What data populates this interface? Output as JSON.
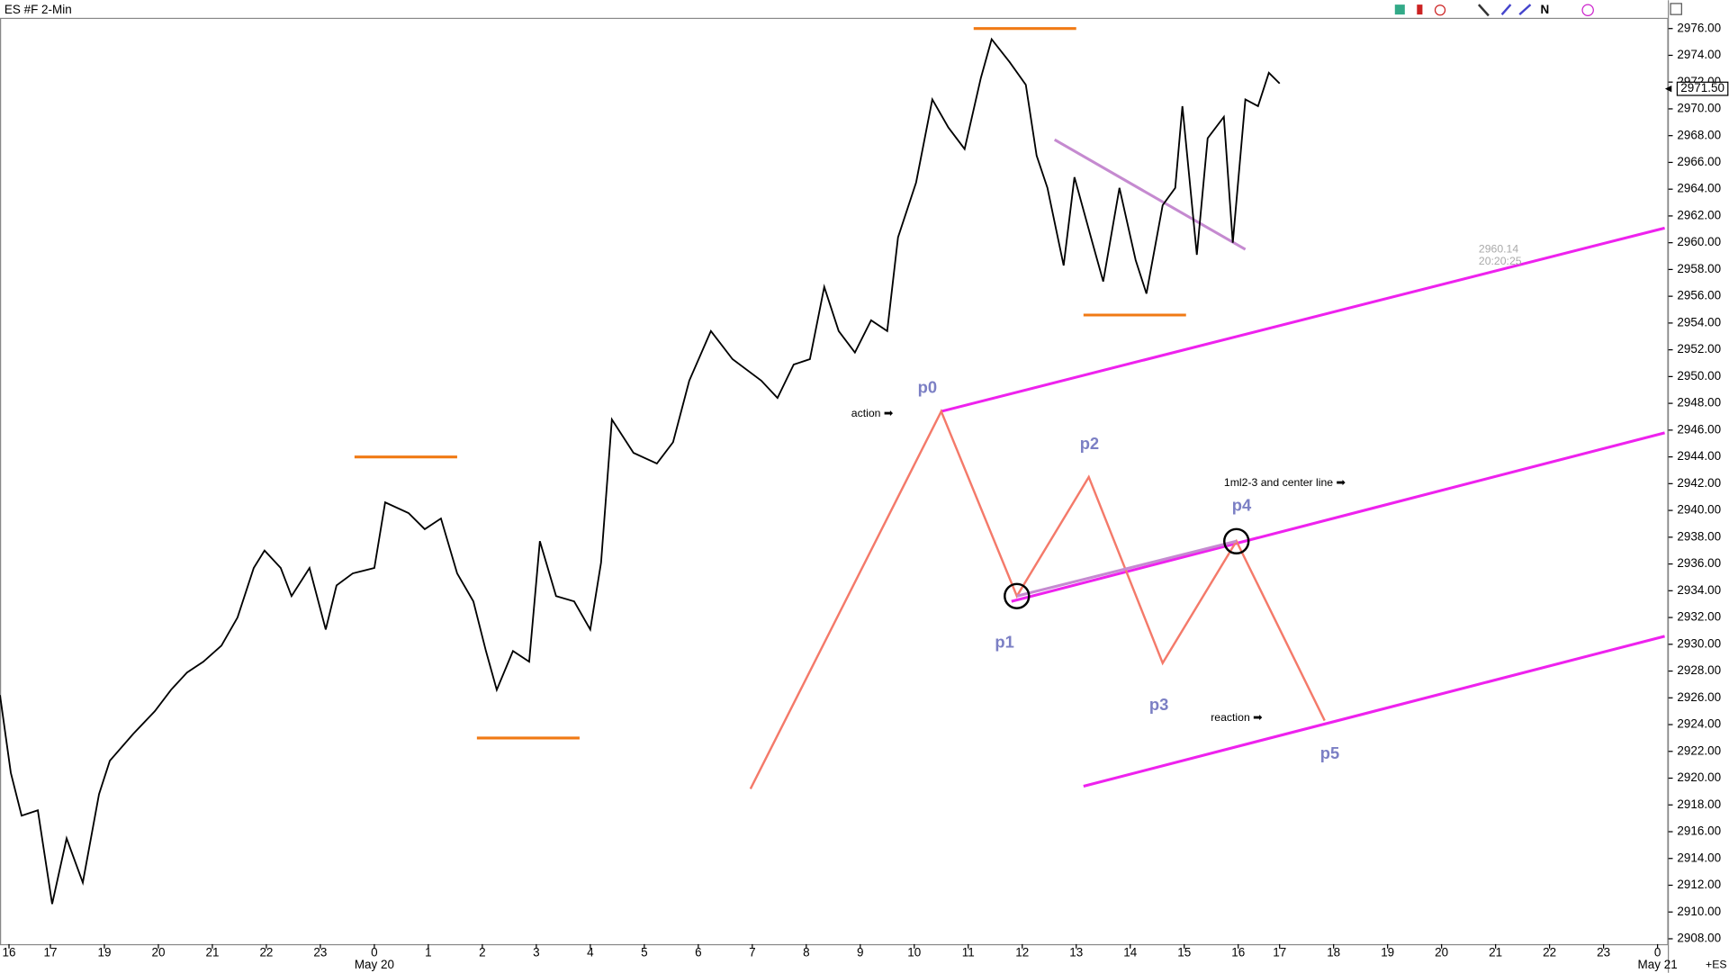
{
  "chart_data": {
    "type": "line",
    "title": "ES #F 2-Min",
    "x": [
      0,
      6,
      12,
      21,
      29,
      37,
      46,
      55,
      61,
      74,
      86,
      95,
      104,
      113,
      123,
      132,
      141,
      147,
      156,
      162,
      172,
      181,
      187,
      196,
      208,
      214,
      227,
      236,
      245,
      254,
      263,
      270,
      276,
      285,
      294,
      300,
      309,
      319,
      328,
      334,
      340,
      352,
      365,
      374,
      383,
      395,
      407,
      423,
      432,
      441,
      450,
      458,
      466,
      475,
      484,
      493,
      499,
      509,
      518,
      527,
      536,
      545,
      551,
      561,
      570,
      576,
      582,
      591,
      597,
      607,
      613,
      622,
      631,
      637,
      646,
      653,
      657,
      665,
      671,
      680,
      685,
      692,
      699,
      705,
      711
    ],
    "values": [
      2926.2,
      2920.4,
      2917.2,
      2917.6,
      2910.6,
      2915.5,
      2912.2,
      2918.8,
      2921.3,
      2923.3,
      2925,
      2926.6,
      2927.9,
      2928.7,
      2929.9,
      2932,
      2935.7,
      2937,
      2935.7,
      2933.6,
      2935.7,
      2931.1,
      2934.4,
      2935.3,
      2935.7,
      2940.6,
      2939.8,
      2938.6,
      2939.4,
      2935.3,
      2933.2,
      2929.5,
      2926.6,
      2929.5,
      2928.7,
      2937.7,
      2933.6,
      2933.2,
      2931.1,
      2936.1,
      2946.8,
      2944.3,
      2943.5,
      2945.1,
      2949.7,
      2953.4,
      2951.3,
      2949.7,
      2948.4,
      2950.9,
      2951.3,
      2956.7,
      2953.4,
      2951.8,
      2954.2,
      2953.4,
      2960.4,
      2964.5,
      2970.7,
      2968.6,
      2967,
      2972.3,
      2975.2,
      2973.5,
      2971.8,
      2966.5,
      2964.1,
      2958.3,
      2964.9,
      2960,
      2957.1,
      2964.1,
      2958.7,
      2956.2,
      2962.8,
      2964.1,
      2970.2,
      2959.1,
      2967.8,
      2969.4,
      2960,
      2970.7,
      2970.2,
      2972.7,
      2971.9
    ],
    "color": "#000000",
    "xlim": [
      0,
      927
    ],
    "ylim": [
      2907.6,
      2976.8
    ],
    "xticks": [
      {
        "value": 5,
        "label": "16"
      },
      {
        "value": 28,
        "label": "17"
      },
      {
        "value": 58,
        "label": "19"
      },
      {
        "value": 88,
        "label": "20"
      },
      {
        "value": 118,
        "label": "21"
      },
      {
        "value": 148,
        "label": "22"
      },
      {
        "value": 178,
        "label": "23"
      },
      {
        "value": 208,
        "label": "0"
      },
      {
        "value": 238,
        "label": "1"
      },
      {
        "value": 268,
        "label": "2"
      },
      {
        "value": 298,
        "label": "3"
      },
      {
        "value": 328,
        "label": "4"
      },
      {
        "value": 358,
        "label": "5"
      },
      {
        "value": 388,
        "label": "6"
      },
      {
        "value": 418,
        "label": "7"
      },
      {
        "value": 448,
        "label": "8"
      },
      {
        "value": 478,
        "label": "9"
      },
      {
        "value": 508,
        "label": "10"
      },
      {
        "value": 538,
        "label": "11"
      },
      {
        "value": 568,
        "label": "12"
      },
      {
        "value": 598,
        "label": "13"
      },
      {
        "value": 628,
        "label": "14"
      },
      {
        "value": 658,
        "label": "15"
      },
      {
        "value": 688,
        "label": "16"
      },
      {
        "value": 711,
        "label": "17"
      },
      {
        "value": 741,
        "label": "18"
      },
      {
        "value": 771,
        "label": "19"
      },
      {
        "value": 801,
        "label": "20"
      },
      {
        "value": 831,
        "label": "21"
      },
      {
        "value": 861,
        "label": "22"
      },
      {
        "value": 891,
        "label": "23"
      },
      {
        "value": 921,
        "label": "0"
      }
    ],
    "date_labels": [
      {
        "value": 208,
        "label": "May 20"
      },
      {
        "value": 921,
        "label": "May 21"
      }
    ],
    "yticks": [
      {
        "value": 2908,
        "label": "2908.00"
      },
      {
        "value": 2910,
        "label": "2910.00"
      },
      {
        "value": 2912,
        "label": "2912.00"
      },
      {
        "value": 2914,
        "label": "2914.00"
      },
      {
        "value": 2916,
        "label": "2916.00"
      },
      {
        "value": 2918,
        "label": "2918.00"
      },
      {
        "value": 2920,
        "label": "2920.00"
      },
      {
        "value": 2922,
        "label": "2922.00"
      },
      {
        "value": 2924,
        "label": "2924.00"
      },
      {
        "value": 2926,
        "label": "2926.00"
      },
      {
        "value": 2928,
        "label": "2928.00"
      },
      {
        "value": 2930,
        "label": "2930.00"
      },
      {
        "value": 2932,
        "label": "2932.00"
      },
      {
        "value": 2934,
        "label": "2934.00"
      },
      {
        "value": 2936,
        "label": "2936.00"
      },
      {
        "value": 2938,
        "label": "2938.00"
      },
      {
        "value": 2940,
        "label": "2940.00"
      },
      {
        "value": 2942,
        "label": "2942.00"
      },
      {
        "value": 2944,
        "label": "2944.00"
      },
      {
        "value": 2946,
        "label": "2946.00"
      },
      {
        "value": 2948,
        "label": "2948.00"
      },
      {
        "value": 2950,
        "label": "2950.00"
      },
      {
        "value": 2952,
        "label": "2952.00"
      },
      {
        "value": 2954,
        "label": "2954.00"
      },
      {
        "value": 2956,
        "label": "2956.00"
      },
      {
        "value": 2958,
        "label": "2958.00"
      },
      {
        "value": 2960,
        "label": "2960.00"
      },
      {
        "value": 2962,
        "label": "2962.00"
      },
      {
        "value": 2964,
        "label": "2964.00"
      },
      {
        "value": 2966,
        "label": "2966.00"
      },
      {
        "value": 2968,
        "label": "2968.00"
      },
      {
        "value": 2970,
        "label": "2970.00"
      },
      {
        "value": 2972,
        "label": "2972.00"
      },
      {
        "value": 2974,
        "label": "2974.00"
      },
      {
        "value": 2976,
        "label": "2976.00"
      }
    ],
    "current_price": {
      "value": 2971.5,
      "label": "2971.50"
    },
    "levels": {
      "color": "#f07a14",
      "lines": [
        {
          "x": [
            197,
            254
          ],
          "y": 2944.0
        },
        {
          "x": [
            265,
            322
          ],
          "y": 2923.0
        },
        {
          "x": [
            541,
            598
          ],
          "y": 2976.0
        },
        {
          "x": [
            602,
            659
          ],
          "y": 2954.6
        }
      ]
    },
    "channel": {
      "color": "#ee22ee",
      "lines": [
        {
          "x": [
            523,
            925
          ],
          "y": [
            2947.4,
            2961.1
          ]
        },
        {
          "x": [
            562,
            925
          ],
          "y": [
            2933.2,
            2945.8
          ]
        },
        {
          "x": [
            602,
            925
          ],
          "y": [
            2919.4,
            2930.6
          ]
        }
      ]
    },
    "zigzag": {
      "color": "#f47a6a",
      "x": [
        417,
        523,
        565,
        605,
        646,
        687,
        736
      ],
      "y": [
        2919.2,
        2947.4,
        2933.6,
        2942.5,
        2928.6,
        2937.7,
        2924.3
      ]
    },
    "trendlines": {
      "color": "#c58ad0",
      "lines": [
        {
          "x": [
            586,
            692
          ],
          "y": [
            2967.7,
            2959.5
          ]
        },
        {
          "x": [
            565,
            687
          ],
          "y": [
            2933.6,
            2937.7
          ]
        }
      ]
    },
    "annotations": [
      "p0",
      "p1",
      "p2",
      "p3",
      "p4",
      "p5",
      "action ➡",
      "1ml2-3 and center line ➡",
      "reaction ➡",
      "2960.14",
      "20:20:25",
      "+ES"
    ]
  }
}
